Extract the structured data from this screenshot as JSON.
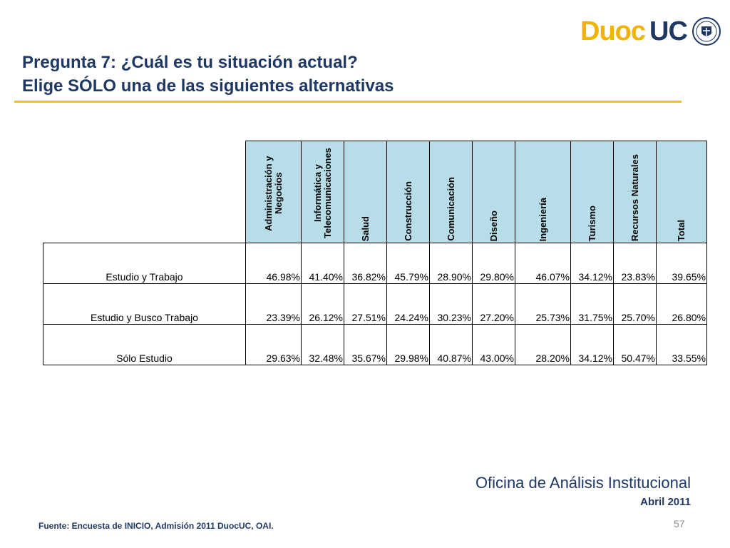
{
  "title": {
    "line1": "Pregunta 7: ¿Cuál es tu situación actual?",
    "line2": "Elige SÓLO una de las siguientes alternativas"
  },
  "logo": {
    "part1": "Duoc",
    "part2": "UC"
  },
  "table": {
    "columns": [
      "Administración y Negocios",
      "Informática y Telecomunicaciones",
      "Salud",
      "Construcción",
      "Comunicación",
      "Diseño",
      "Ingeniería",
      "Turismo",
      "Recursos Naturales",
      "Total"
    ],
    "rows": [
      {
        "label": "Estudio y Trabajo",
        "values": [
          "46.98%",
          "41.40%",
          "36.82%",
          "45.79%",
          "28.90%",
          "29.80%",
          "46.07%",
          "34.12%",
          "23.83%",
          "39.65%"
        ]
      },
      {
        "label": "Estudio y Busco Trabajo",
        "values": [
          "23.39%",
          "26.12%",
          "27.51%",
          "24.24%",
          "30.23%",
          "27.20%",
          "25.73%",
          "31.75%",
          "25.70%",
          "26.80%"
        ]
      },
      {
        "label": "Sólo Estudio",
        "values": [
          "29.63%",
          "32.48%",
          "35.67%",
          "29.98%",
          "40.87%",
          "43.00%",
          "28.20%",
          "34.12%",
          "50.47%",
          "33.55%"
        ]
      }
    ]
  },
  "footer": {
    "office": "Oficina de Análisis Institucional",
    "date": "Abril 2011",
    "source": "Fuente: Encuesta de INICIO, Admisión 2011 DuocUC, OAI.",
    "page": "57"
  },
  "colors": {
    "title": "#1F3864",
    "accent": "#F3C11B",
    "header_fill": "#B7DEE8"
  }
}
